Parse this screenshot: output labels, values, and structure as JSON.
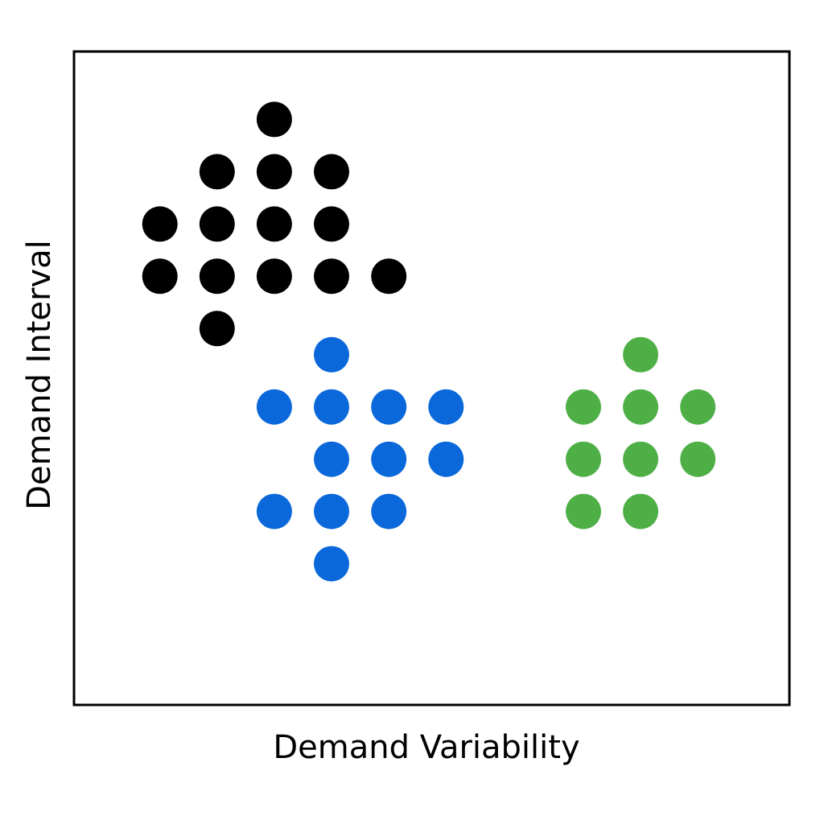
{
  "chart_data": {
    "type": "scatter",
    "title": "",
    "xlabel": "Demand Variability",
    "ylabel": "Demand Interval",
    "xlim": [
      0,
      12.5
    ],
    "ylim": [
      0,
      12.5
    ],
    "grid": false,
    "legend": "none",
    "series": [
      {
        "color": "#000000",
        "points": [
          {
            "x": 3.5,
            "y": 11.2
          },
          {
            "x": 2.5,
            "y": 10.2
          },
          {
            "x": 3.5,
            "y": 10.2
          },
          {
            "x": 4.5,
            "y": 10.2
          },
          {
            "x": 1.5,
            "y": 9.2
          },
          {
            "x": 2.5,
            "y": 9.2
          },
          {
            "x": 3.5,
            "y": 9.2
          },
          {
            "x": 4.5,
            "y": 9.2
          },
          {
            "x": 1.5,
            "y": 8.2
          },
          {
            "x": 2.5,
            "y": 8.2
          },
          {
            "x": 3.5,
            "y": 8.2
          },
          {
            "x": 4.5,
            "y": 8.2
          },
          {
            "x": 5.5,
            "y": 8.2
          },
          {
            "x": 2.5,
            "y": 7.2
          }
        ]
      },
      {
        "color": "#0A68DB",
        "points": [
          {
            "x": 4.5,
            "y": 6.7
          },
          {
            "x": 3.5,
            "y": 5.7
          },
          {
            "x": 4.5,
            "y": 5.7
          },
          {
            "x": 5.5,
            "y": 5.7
          },
          {
            "x": 6.5,
            "y": 5.7
          },
          {
            "x": 4.5,
            "y": 4.7
          },
          {
            "x": 5.5,
            "y": 4.7
          },
          {
            "x": 6.5,
            "y": 4.7
          },
          {
            "x": 3.5,
            "y": 3.7
          },
          {
            "x": 4.5,
            "y": 3.7
          },
          {
            "x": 5.5,
            "y": 3.7
          },
          {
            "x": 4.5,
            "y": 2.7
          }
        ]
      },
      {
        "color": "#4FAF47",
        "points": [
          {
            "x": 9.9,
            "y": 6.7
          },
          {
            "x": 8.9,
            "y": 5.7
          },
          {
            "x": 9.9,
            "y": 5.7
          },
          {
            "x": 10.9,
            "y": 5.7
          },
          {
            "x": 8.9,
            "y": 4.7
          },
          {
            "x": 9.9,
            "y": 4.7
          },
          {
            "x": 10.9,
            "y": 4.7
          },
          {
            "x": 8.9,
            "y": 3.7
          },
          {
            "x": 9.9,
            "y": 3.7
          }
        ]
      }
    ]
  }
}
